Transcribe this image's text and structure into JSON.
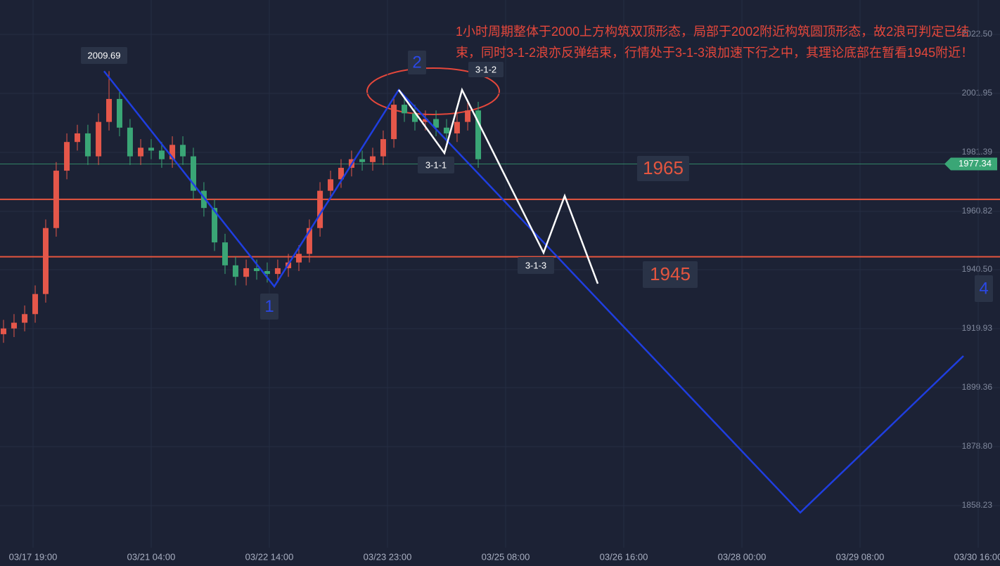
{
  "chart_data": {
    "type": "candlestick",
    "note": "1小时周期整体于2000上方构筑双顶形态，局部于2002附近构筑圆顶形态，故2浪可判定已结束，同时3-1-2浪亦反弹结束，行情处于3-1-3浪加速下行之中，其理论底部在暂看1945附近！",
    "xlim": [
      -0.2798,
      8.1845
    ],
    "xticks": [
      {
        "value": 0,
        "label": "03/17 19:00"
      },
      {
        "value": 1,
        "label": "03/21 04:00"
      },
      {
        "value": 2,
        "label": "03/22 14:00"
      },
      {
        "value": 3,
        "label": "03/23 23:00"
      },
      {
        "value": 4,
        "label": "03/25 08:00"
      },
      {
        "value": 5,
        "label": "03/26 16:00"
      },
      {
        "value": 6,
        "label": "03/28 00:00"
      },
      {
        "value": 7,
        "label": "03/29 08:00"
      },
      {
        "value": 8,
        "label": "03/30 16:00"
      }
    ],
    "ylim": [
      1843.55,
      2034.5
    ],
    "yticks": [
      {
        "value": 2022.5,
        "label": "2022.50"
      },
      2001.95,
      1981.39,
      1960.82,
      {
        "value": 1940.5,
        "label": "1940.50"
      },
      1919.93,
      1899.36,
      {
        "value": 1878.8,
        "label": "1878.80"
      },
      1858.23
    ],
    "grid": true,
    "up_color": "#e5574a",
    "down_color": "#3aa676",
    "x": [
      -0.25,
      -0.161,
      -0.071,
      0.018,
      0.107,
      0.196,
      0.286,
      0.375,
      0.464,
      0.554,
      0.643,
      0.732,
      0.821,
      0.911,
      1.0,
      1.089,
      1.179,
      1.268,
      1.357,
      1.446,
      1.536,
      1.625,
      1.714,
      1.804,
      1.893,
      1.982,
      2.071,
      2.161,
      2.25,
      2.339,
      2.429,
      2.518,
      2.607,
      2.696,
      2.786,
      2.875,
      2.964,
      3.054,
      3.143,
      3.232,
      3.321,
      3.411,
      3.5,
      3.589,
      3.679,
      3.768
    ],
    "open": [
      1918,
      1920,
      1922,
      1925,
      1932,
      1955,
      1975,
      1985,
      1988,
      1980,
      1992,
      2000,
      1990,
      1980,
      1983,
      1982,
      1979,
      1984,
      1980,
      1968,
      1962,
      1950,
      1942,
      1938,
      1941,
      1940,
      1939,
      1941,
      1943,
      1946,
      1955,
      1968,
      1972,
      1976,
      1979,
      1978,
      1980,
      1986,
      1998,
      1995,
      1992,
      1993,
      1990,
      1988,
      1992,
      1996
    ],
    "high": [
      1923,
      1925,
      1928,
      1935,
      1958,
      1978,
      1988,
      1991,
      1991,
      1995,
      2009.69,
      2003,
      1993,
      1986,
      1986,
      1985,
      1987,
      1987,
      1983,
      1971,
      1965,
      1953,
      1945,
      1944,
      1944,
      1943,
      1944,
      1946,
      1949,
      1958,
      1971,
      1975,
      1979,
      1982,
      1982,
      1983,
      1989,
      2001,
      2001,
      1998,
      1996,
      1996,
      1993,
      1995,
      1999,
      1999
    ],
    "low": [
      1915,
      1917,
      1919,
      1922,
      1929,
      1952,
      1972,
      1982,
      1977,
      1977,
      1989,
      1987,
      1977,
      1977,
      1979,
      1976,
      1976,
      1977,
      1965,
      1959,
      1947,
      1939,
      1935,
      1935,
      1937,
      1936,
      1936,
      1938,
      1940,
      1943,
      1952,
      1965,
      1969,
      1973,
      1975,
      1975,
      1977,
      1983,
      1992,
      1989,
      1989,
      1987,
      1985,
      1985,
      1989,
      1976
    ],
    "close": [
      1920,
      1922,
      1925,
      1932,
      1955,
      1975,
      1985,
      1988,
      1980,
      1992,
      2000,
      1990,
      1980,
      1983,
      1982,
      1979,
      1984,
      1980,
      1968,
      1962,
      1950,
      1942,
      1938,
      1941,
      1940,
      1939,
      1941,
      1943,
      1946,
      1955,
      1968,
      1972,
      1976,
      1979,
      1978,
      1980,
      1986,
      1998,
      1995,
      1992,
      1993,
      1990,
      1988,
      1992,
      1996,
      1979
    ],
    "lines": [
      {
        "color": "#1f3ee0",
        "x": [
          0.601,
          2.042,
          3.095,
          6.494,
          7.875
        ],
        "values": [
          2009.69,
          1934.63,
          2003.17,
          1855.8,
          1910.4
        ]
      },
      {
        "color": "#ffffff",
        "x": [
          3.095,
          3.482,
          3.631,
          4.321,
          4.5,
          4.78
        ],
        "values": [
          2003.17,
          1981.14,
          2003.17,
          1946.4,
          1966.2,
          1935.6
        ]
      }
    ],
    "hlines": [
      {
        "value": 1965,
        "color": "#e5553f"
      },
      {
        "value": 1945,
        "color": "#e5553f"
      }
    ],
    "last_price": 1977.34,
    "last_price_color": "#3aa676",
    "wave_labels": [
      "1",
      "2",
      "4"
    ],
    "wave_color": "#2a48e6",
    "segment_labels": [
      "3-1-1",
      "3-1-2",
      "3-1-3"
    ]
  }
}
